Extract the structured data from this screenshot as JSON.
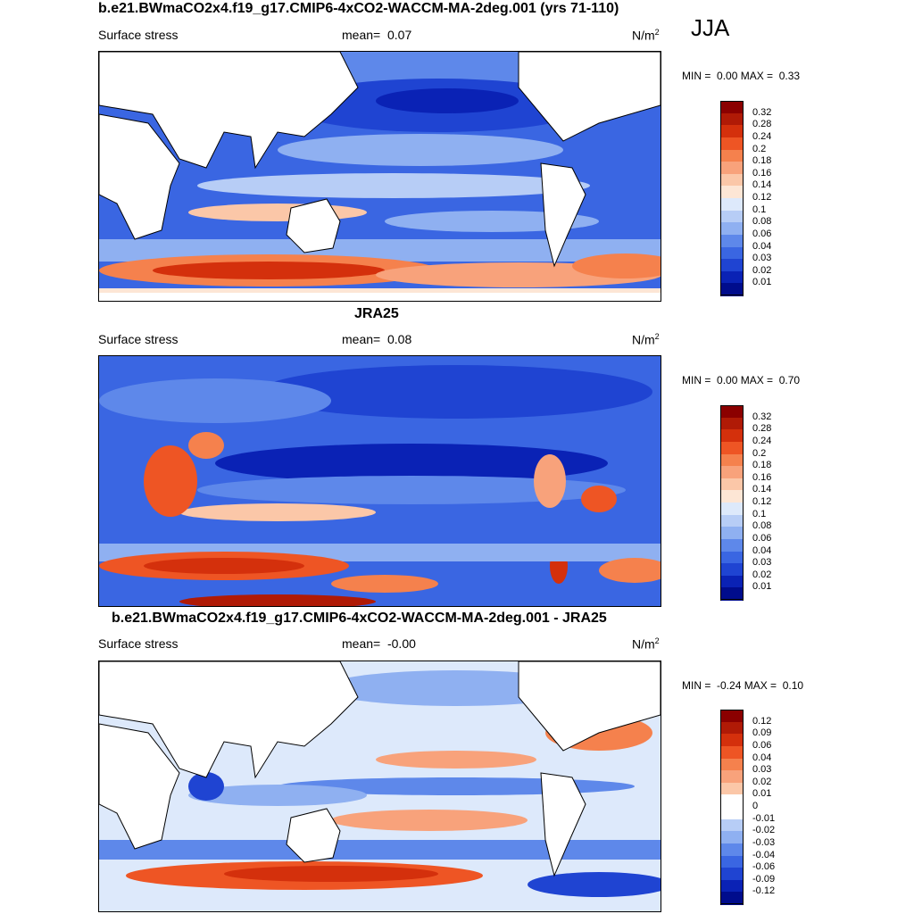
{
  "season": "JJA",
  "panels": [
    {
      "title": "b.e21.BWmaCO2x4.f19_g17.CMIP6-4xCO2-WACCM-MA-2deg.001 (yrs 71-110)",
      "variable": "Surface stress",
      "mean_label": "mean=",
      "mean_value": "0.07",
      "units": "N/m",
      "units_sup": "2",
      "min_label": "MIN =",
      "min_value": "0.00",
      "max_label": "MAX =",
      "max_value": "0.33",
      "colorbar_labels": [
        "0.32",
        "0.28",
        "0.24",
        "0.2",
        "0.18",
        "0.16",
        "0.14",
        "0.12",
        "0.1",
        "0.08",
        "0.06",
        "0.04",
        "0.03",
        "0.02",
        "0.01"
      ],
      "colors": [
        "#8b0000",
        "#b01a06",
        "#d4300c",
        "#ee5524",
        "#f5814d",
        "#f8a27b",
        "#fbc7a8",
        "#fde6d5",
        "#dde9fb",
        "#b7cdf6",
        "#8fb0f1",
        "#5e88ea",
        "#3a66e2",
        "#1f44d2",
        "#0a22b5",
        "#000c8c"
      ]
    },
    {
      "title": "JRA25",
      "variable": "Surface stress",
      "mean_label": "mean=",
      "mean_value": "0.08",
      "units": "N/m",
      "units_sup": "2",
      "min_label": "MIN =",
      "min_value": "0.00",
      "max_label": "MAX =",
      "max_value": "0.70",
      "colorbar_labels": [
        "0.32",
        "0.28",
        "0.24",
        "0.2",
        "0.18",
        "0.16",
        "0.14",
        "0.12",
        "0.1",
        "0.08",
        "0.06",
        "0.04",
        "0.03",
        "0.02",
        "0.01"
      ],
      "colors": [
        "#8b0000",
        "#b01a06",
        "#d4300c",
        "#ee5524",
        "#f5814d",
        "#f8a27b",
        "#fbc7a8",
        "#fde6d5",
        "#dde9fb",
        "#b7cdf6",
        "#8fb0f1",
        "#5e88ea",
        "#3a66e2",
        "#1f44d2",
        "#0a22b5",
        "#000c8c"
      ]
    },
    {
      "title": "b.e21.BWmaCO2x4.f19_g17.CMIP6-4xCO2-WACCM-MA-2deg.001 - JRA25",
      "variable": "Surface stress",
      "mean_label": "mean=",
      "mean_value": "-0.00",
      "units": "N/m",
      "units_sup": "2",
      "min_label": "MIN =",
      "min_value": "-0.24",
      "max_label": "MAX =",
      "max_value": "0.10",
      "colorbar_labels": [
        "0.12",
        "0.09",
        "0.06",
        "0.04",
        "0.03",
        "0.02",
        "0.01",
        "0",
        "-0.01",
        "-0.02",
        "-0.03",
        "-0.04",
        "-0.06",
        "-0.09",
        "-0.12"
      ],
      "colors": [
        "#8b0000",
        "#b01a06",
        "#d4300c",
        "#ee5524",
        "#f5814d",
        "#f8a27b",
        "#fbc7a8",
        "#ffffff",
        "#ffffff",
        "#b7cdf6",
        "#8fb0f1",
        "#5e88ea",
        "#3a66e2",
        "#1f44d2",
        "#0a22b5",
        "#000c8c"
      ]
    }
  ]
}
